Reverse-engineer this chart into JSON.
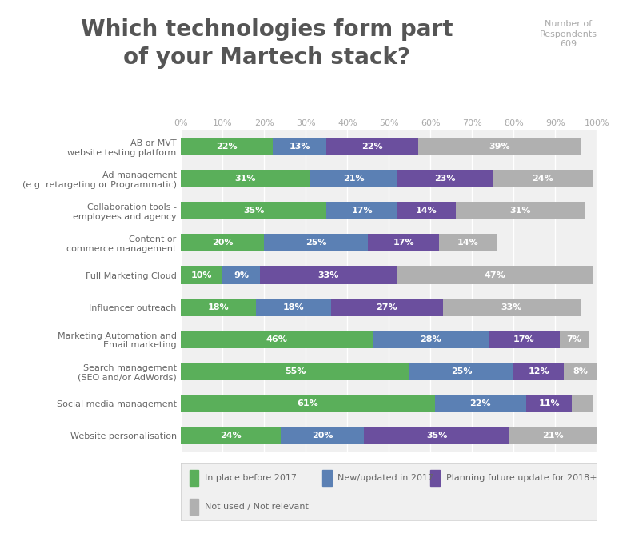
{
  "title": "Which technologies form part\nof your Martech stack?",
  "respondents_label": "Number of\nRespondents\n609",
  "categories": [
    "AB or MVT\nwebsite testing platform",
    "Ad management\n(e.g. retargeting or Programmatic)",
    "Collaboration tools -\nemployees and agency",
    "Content or\ncommerce management",
    "Full Marketing Cloud",
    "Influencer outreach",
    "Marketing Automation and\nEmail marketing",
    "Search management\n(SEO and/or AdWords)",
    "Social media management",
    "Website personalisation"
  ],
  "data": {
    "green": [
      22,
      31,
      35,
      20,
      10,
      18,
      46,
      55,
      61,
      24
    ],
    "blue": [
      13,
      21,
      17,
      25,
      9,
      18,
      28,
      25,
      22,
      20
    ],
    "purple": [
      22,
      23,
      14,
      17,
      33,
      27,
      17,
      12,
      11,
      35
    ],
    "gray": [
      39,
      24,
      31,
      14,
      47,
      33,
      7,
      8,
      5,
      21
    ]
  },
  "colors": {
    "green": "#5aaf5a",
    "blue": "#5b80b4",
    "purple": "#6b4f9e",
    "gray": "#b0b0b0"
  },
  "legend_labels": {
    "green": "In place before 2017",
    "blue": "New/updated in 2017",
    "purple": "Planning future update for 2018+",
    "gray": "Not used / Not relevant"
  },
  "background_color": "#f0f0f0",
  "chart_bg": "#f0f0f0",
  "outer_background": "#ffffff",
  "title_color": "#555555",
  "respondents_color": "#aaaaaa",
  "bar_label_color": "#ffffff",
  "axis_label_color": "#aaaaaa",
  "category_label_color": "#666666",
  "grid_color": "#ffffff",
  "xtick_positions": [
    0,
    10,
    20,
    30,
    40,
    50,
    60,
    70,
    80,
    90,
    100
  ],
  "xtick_labels": [
    "0%",
    "10%",
    "20%",
    "30%",
    "40%",
    "50%",
    "60%",
    "70%",
    "80%",
    "90%",
    "100%"
  ],
  "bar_height": 0.55,
  "font_size_title": 20,
  "font_size_bar_label": 8,
  "font_size_ticks": 8,
  "font_size_legend": 8,
  "font_size_category": 8,
  "font_size_respondents": 8
}
